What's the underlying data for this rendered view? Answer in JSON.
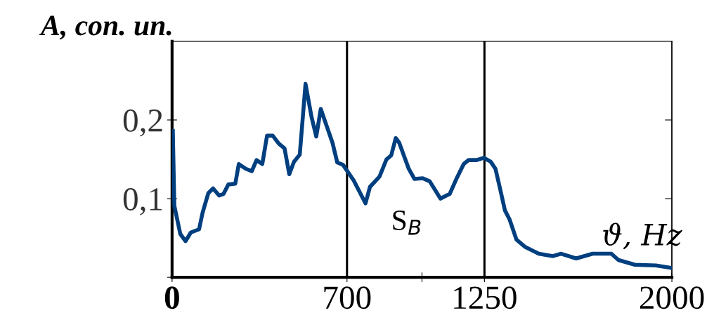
{
  "chart_data": {
    "type": "line",
    "ylabel": "A, con. un.",
    "xlabel": "ϑ, Hz",
    "x": [
      3,
      9,
      33,
      54,
      75,
      108,
      122,
      145,
      164,
      188,
      206,
      225,
      253,
      267,
      295,
      319,
      338,
      361,
      380,
      403,
      427,
      450,
      469,
      488,
      511,
      534,
      558,
      577,
      595,
      619,
      642,
      661,
      684,
      727,
      774,
      792,
      830,
      858,
      877,
      895,
      909,
      947,
      970,
      1003,
      1031,
      1074,
      1111,
      1139,
      1167,
      1186,
      1219,
      1247,
      1275,
      1294,
      1313,
      1332,
      1350,
      1378,
      1411,
      1467,
      1524,
      1557,
      1617,
      1683,
      1758,
      1786,
      1852,
      1936,
      1997
    ],
    "series": [
      {
        "color": "#003f7f",
        "values": [
          0.186,
          0.091,
          0.055,
          0.046,
          0.057,
          0.061,
          0.082,
          0.107,
          0.113,
          0.104,
          0.106,
          0.118,
          0.119,
          0.144,
          0.138,
          0.135,
          0.149,
          0.144,
          0.18,
          0.18,
          0.17,
          0.164,
          0.131,
          0.147,
          0.156,
          0.246,
          0.204,
          0.179,
          0.214,
          0.192,
          0.171,
          0.146,
          0.143,
          0.123,
          0.094,
          0.115,
          0.128,
          0.15,
          0.155,
          0.177,
          0.171,
          0.138,
          0.125,
          0.126,
          0.122,
          0.1,
          0.106,
          0.126,
          0.144,
          0.149,
          0.149,
          0.152,
          0.147,
          0.138,
          0.112,
          0.085,
          0.074,
          0.048,
          0.039,
          0.03,
          0.027,
          0.03,
          0.024,
          0.03,
          0.03,
          0.022,
          0.016,
          0.015,
          0.012
        ]
      }
    ],
    "xlim": [
      0,
      2000
    ],
    "xticks": [
      {
        "value": 0,
        "label": "0"
      },
      700,
      {
        "value": 1000,
        "label": null
      },
      1250,
      2000
    ],
    "ylim": [
      0,
      0.3
    ],
    "yticks": [
      {
        "value": 0,
        "label": null
      },
      {
        "value": 0.1,
        "label": "0,1"
      },
      {
        "value": 0.2,
        "label": "0,2"
      }
    ],
    "ref_lines": [
      {
        "axis": "x",
        "value": 700,
        "color": "#000000"
      },
      {
        "axis": "x",
        "value": 1250,
        "color": "#000000"
      }
    ],
    "annotations": [
      "S$_{B}$"
    ],
    "grid": false,
    "legend": false,
    "marker": "none",
    "line_style": "solid"
  }
}
